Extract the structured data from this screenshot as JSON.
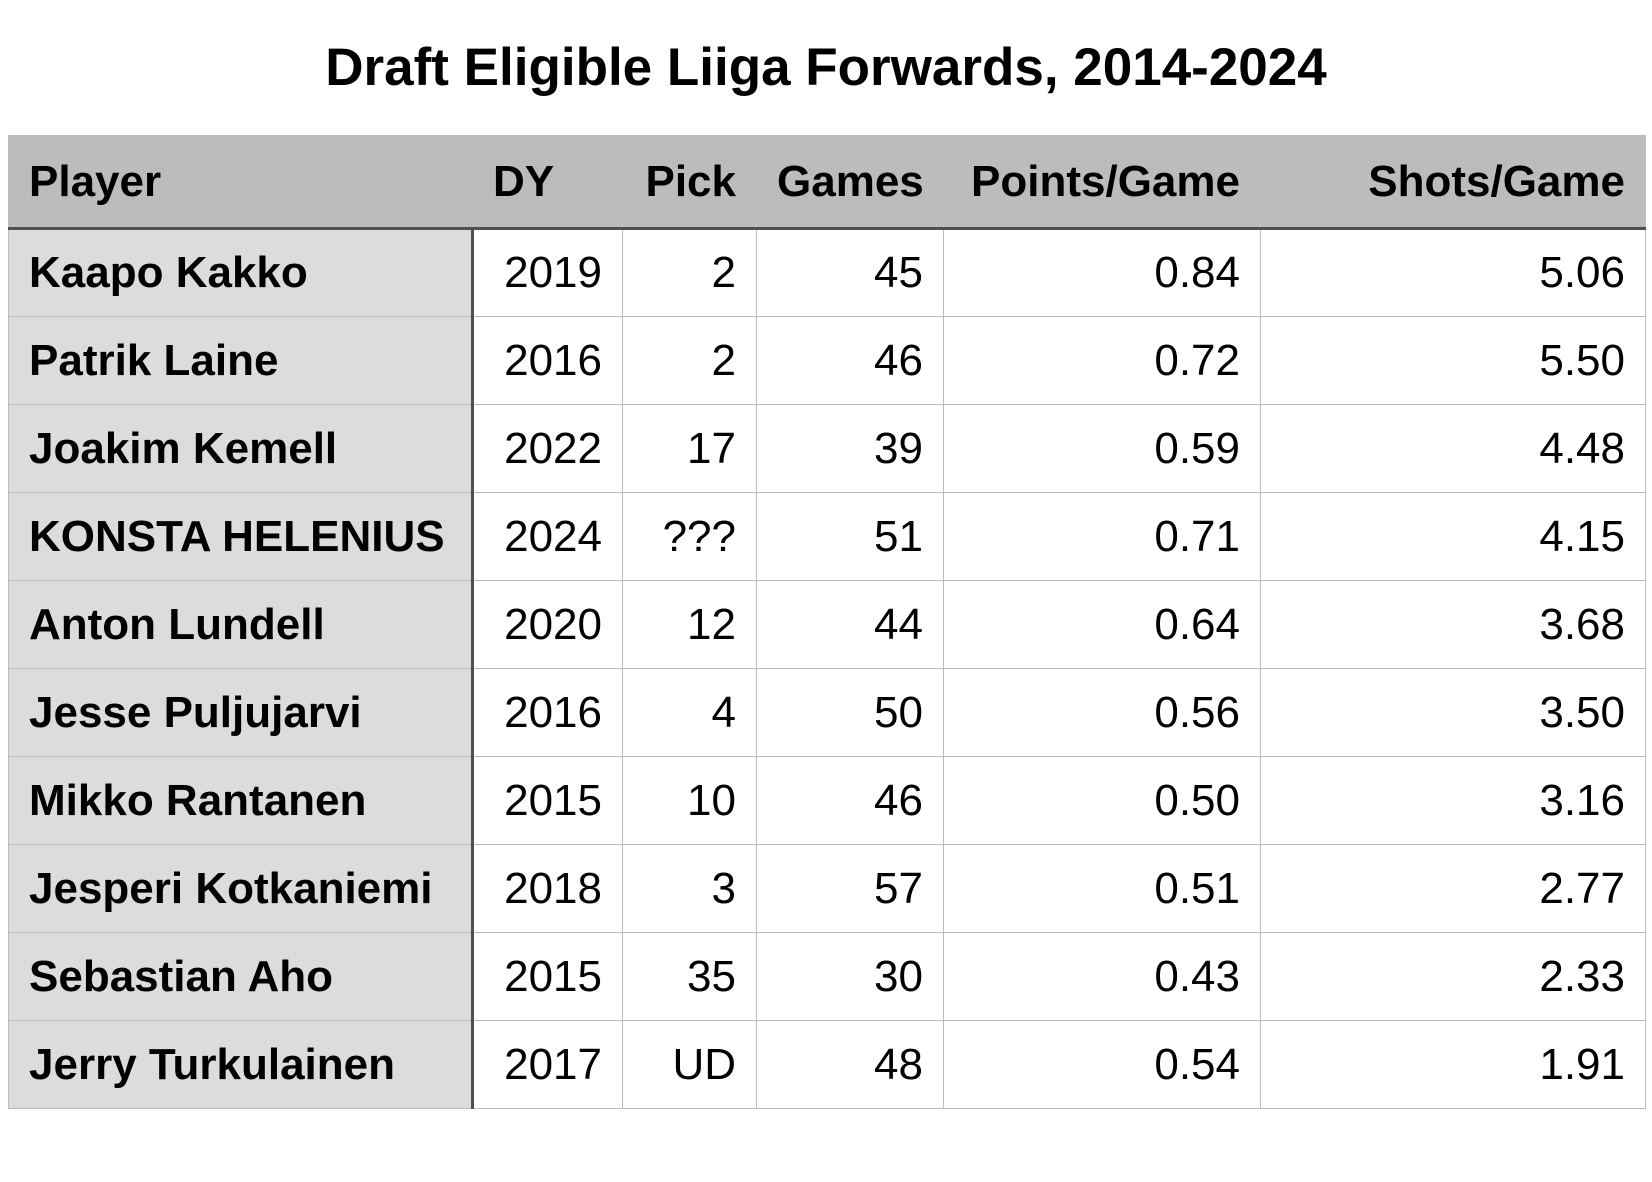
{
  "chart_data": {
    "type": "table",
    "title": "Draft Eligible Liiga Forwards, 2014-2024",
    "columns": [
      "Player",
      "DY",
      "Pick",
      "Games",
      "Points/Game",
      "Shots/Game"
    ],
    "rows": [
      [
        "Kaapo Kakko",
        "2019",
        "2",
        "45",
        "0.84",
        "5.06"
      ],
      [
        "Patrik Laine",
        "2016",
        "2",
        "46",
        "0.72",
        "5.50"
      ],
      [
        "Joakim Kemell",
        "2022",
        "17",
        "39",
        "0.59",
        "4.48"
      ],
      [
        "KONSTA HELENIUS",
        "2024",
        "???",
        "51",
        "0.71",
        "4.15"
      ],
      [
        "Anton Lundell",
        "2020",
        "12",
        "44",
        "0.64",
        "3.68"
      ],
      [
        "Jesse Puljujarvi",
        "2016",
        "4",
        "50",
        "0.56",
        "3.50"
      ],
      [
        "Mikko Rantanen",
        "2015",
        "10",
        "46",
        "0.50",
        "3.16"
      ],
      [
        "Jesperi Kotkaniemi",
        "2018",
        "3",
        "57",
        "0.51",
        "2.77"
      ],
      [
        "Sebastian Aho",
        "2015",
        "35",
        "30",
        "0.43",
        "2.33"
      ],
      [
        "Jerry Turkulainen",
        "2017",
        "UD",
        "48",
        "0.54",
        "1.91"
      ]
    ]
  }
}
